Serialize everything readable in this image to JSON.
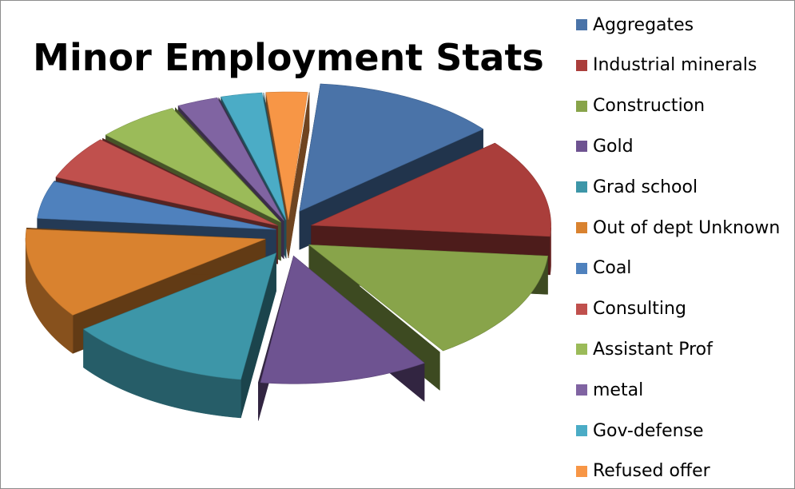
{
  "chart_data": {
    "type": "pie",
    "style": "3d-exploded",
    "title": "Minor Employment Stats",
    "legend_position": "right",
    "slices": [
      {
        "label": "Aggregates",
        "value": 13,
        "color": "#4a73a8"
      },
      {
        "label": "Industrial minerals",
        "value": 13,
        "color": "#aa3e3b"
      },
      {
        "label": "Construction",
        "value": 15,
        "color": "#88a44a"
      },
      {
        "label": "Gold",
        "value": 12,
        "color": "#6e5391"
      },
      {
        "label": "Grad school",
        "value": 13,
        "color": "#3d96a8"
      },
      {
        "label": "Out of dept Unknown",
        "value": 12,
        "color": "#d9822f"
      },
      {
        "label": "Coal",
        "value": 5,
        "color": "#4f81bd"
      },
      {
        "label": "Consulting",
        "value": 6,
        "color": "#c0504d"
      },
      {
        "label": "Assistant Prof",
        "value": 6,
        "color": "#9bbb59"
      },
      {
        "label": "metal",
        "value": 3,
        "color": "#8064a2"
      },
      {
        "label": "Gov-defense",
        "value": 3,
        "color": "#4bacc6"
      },
      {
        "label": "Refused offer",
        "value": 3,
        "color": "#f79646"
      }
    ]
  }
}
